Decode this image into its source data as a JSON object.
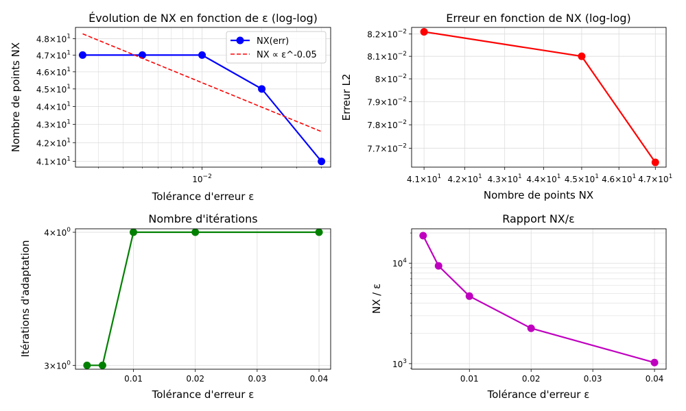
{
  "chart_data": [
    {
      "type": "line",
      "title": "Évolution de NX en fonction de ε (log-log)",
      "xlabel": "Tolérance d'erreur ε",
      "ylabel": "Nombre de points NX",
      "xscale": "log",
      "yscale": "log",
      "xlim": [
        0.0023,
        0.0445
      ],
      "ylim": [
        40.7,
        48.7
      ],
      "grid": true,
      "legend_position": "top-right",
      "x_ticks": [
        {
          "value": 0.01,
          "base": "10",
          "exp": "−2"
        }
      ],
      "y_ticks": [
        {
          "value": 41,
          "mant": "4.1",
          "exp": "1"
        },
        {
          "value": 42,
          "mant": "4.2",
          "exp": "1"
        },
        {
          "value": 43,
          "mant": "4.3",
          "exp": "1"
        },
        {
          "value": 44,
          "mant": "4.4",
          "exp": "1"
        },
        {
          "value": 45,
          "mant": "4.5",
          "exp": "1"
        },
        {
          "value": 46,
          "mant": "4.6",
          "exp": "1"
        },
        {
          "value": 47,
          "mant": "4.7",
          "exp": "1"
        },
        {
          "value": 48,
          "mant": "4.8",
          "exp": "1"
        }
      ],
      "series": [
        {
          "name": "NX(err)",
          "style": "solid-markers",
          "color": "#0000ff",
          "x": [
            0.0025,
            0.005,
            0.01,
            0.02,
            0.04
          ],
          "y": [
            47,
            47,
            47,
            45,
            41
          ]
        },
        {
          "name": "NX ∝ ε^-0.05",
          "style": "dashed",
          "color": "#ff0000",
          "x": [
            0.0025,
            0.04
          ],
          "y": [
            48.3,
            42.6
          ]
        }
      ]
    },
    {
      "type": "line",
      "title": "Erreur en fonction de NX (log-log)",
      "xlabel": "Nombre de points NX",
      "ylabel": "Erreur L2",
      "xscale": "log",
      "yscale": "log",
      "xlim": [
        40.7,
        47.3
      ],
      "ylim": [
        0.0762,
        0.0823
      ],
      "grid": true,
      "x_ticks": [
        {
          "value": 41,
          "mant": "4.1",
          "exp": "1"
        },
        {
          "value": 42,
          "mant": "4.2",
          "exp": "1"
        },
        {
          "value": 43,
          "mant": "4.3",
          "exp": "1"
        },
        {
          "value": 44,
          "mant": "4.4",
          "exp": "1"
        },
        {
          "value": 45,
          "mant": "4.5",
          "exp": "1"
        },
        {
          "value": 46,
          "mant": "4.6",
          "exp": "1"
        },
        {
          "value": 47,
          "mant": "4.7",
          "exp": "1"
        }
      ],
      "y_ticks": [
        {
          "value": 0.077,
          "mant": "7.7",
          "exp": "−2"
        },
        {
          "value": 0.078,
          "mant": "7.8",
          "exp": "−2"
        },
        {
          "value": 0.079,
          "mant": "7.9",
          "exp": "−2"
        },
        {
          "value": 0.08,
          "mant": "8",
          "exp": "−2"
        },
        {
          "value": 0.081,
          "mant": "8.1",
          "exp": "−2"
        },
        {
          "value": 0.082,
          "mant": "8.2",
          "exp": "−2"
        }
      ],
      "series": [
        {
          "style": "solid-markers",
          "color": "#ff0000",
          "x": [
            41,
            45,
            47
          ],
          "y": [
            0.0821,
            0.081,
            0.0764
          ]
        }
      ]
    },
    {
      "type": "line",
      "title": "Nombre d'itérations",
      "xlabel": "Tolérance d'erreur ε",
      "ylabel": "Itérations d'adaptation",
      "xscale": "linear",
      "yscale": "log",
      "xlim": [
        0.00063,
        0.04188
      ],
      "ylim": [
        2.975,
        4.03
      ],
      "grid": true,
      "x_ticks": [
        {
          "value": 0.01,
          "label": "0.01"
        },
        {
          "value": 0.02,
          "label": "0.02"
        },
        {
          "value": 0.03,
          "label": "0.03"
        },
        {
          "value": 0.04,
          "label": "0.04"
        }
      ],
      "y_ticks": [
        {
          "value": 3,
          "mant": "3",
          "exp": "0"
        },
        {
          "value": 4,
          "mant": "4",
          "exp": "0"
        }
      ],
      "series": [
        {
          "style": "solid-markers",
          "color": "#008000",
          "x": [
            0.0025,
            0.005,
            0.01,
            0.02,
            0.04
          ],
          "y": [
            3,
            3,
            4,
            4,
            4
          ]
        }
      ]
    },
    {
      "type": "line",
      "title": "Rapport NX/ε",
      "xlabel": "Tolérance d'erreur ε",
      "ylabel": "NX / ε",
      "xscale": "linear",
      "yscale": "log",
      "xlim": [
        0.00063,
        0.04188
      ],
      "ylim": [
        880,
        22000
      ],
      "grid": true,
      "x_ticks": [
        {
          "value": 0.01,
          "label": "0.01"
        },
        {
          "value": 0.02,
          "label": "0.02"
        },
        {
          "value": 0.03,
          "label": "0.03"
        },
        {
          "value": 0.04,
          "label": "0.04"
        }
      ],
      "y_ticks": [
        {
          "value": 1000,
          "base": "10",
          "exp": "3"
        },
        {
          "value": 10000,
          "base": "10",
          "exp": "4"
        }
      ],
      "series": [
        {
          "style": "solid-markers",
          "color": "#bf00bf",
          "x": [
            0.0025,
            0.005,
            0.01,
            0.02,
            0.04
          ],
          "y": [
            18800,
            9400,
            4700,
            2250,
            1025
          ]
        }
      ]
    }
  ]
}
